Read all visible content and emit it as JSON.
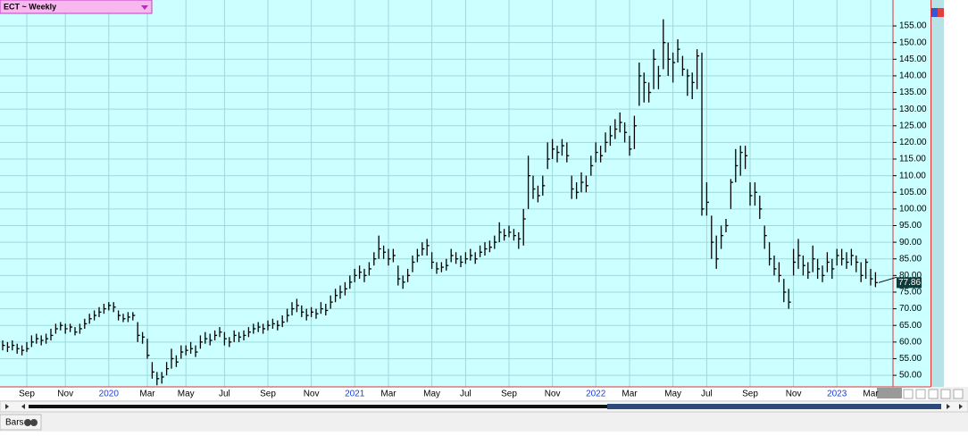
{
  "chart_data": {
    "type": "hlc",
    "title": "ECT ~ Weekly",
    "footer": "Bars",
    "ylim": [
      46.8,
      162.8
    ],
    "yticks": [
      {
        "value": 50,
        "label": "50.00"
      },
      {
        "value": 55,
        "label": "55.00"
      },
      {
        "value": 60,
        "label": "60.00"
      },
      {
        "value": 65,
        "label": "65.00"
      },
      {
        "value": 70,
        "label": "70.00"
      },
      {
        "value": 75,
        "label": "75.00"
      },
      {
        "value": 80,
        "label": "80.00"
      },
      {
        "value": 85,
        "label": "85.00"
      },
      {
        "value": 90,
        "label": "90.00"
      },
      {
        "value": 95,
        "label": "95.00"
      },
      {
        "value": 100,
        "label": "100.00"
      },
      {
        "value": 105,
        "label": "105.00"
      },
      {
        "value": 110,
        "label": "110.00"
      },
      {
        "value": 115,
        "label": "115.00"
      },
      {
        "value": 120,
        "label": "120.00"
      },
      {
        "value": 125,
        "label": "125.00"
      },
      {
        "value": 130,
        "label": "130.00"
      },
      {
        "value": 135,
        "label": "135.00"
      },
      {
        "value": 140,
        "label": "140.00"
      },
      {
        "value": 145,
        "label": "145.00"
      },
      {
        "value": 150,
        "label": "150.00"
      },
      {
        "value": 155,
        "label": "155.00"
      }
    ],
    "grid": true,
    "color": "#000000",
    "categories": [
      null,
      null,
      null,
      null,
      null,
      "Sep",
      null,
      null,
      null,
      null,
      null,
      null,
      null,
      "Nov",
      null,
      null,
      null,
      null,
      null,
      null,
      null,
      null,
      "2020",
      null,
      null,
      null,
      null,
      null,
      null,
      null,
      "Mar",
      null,
      null,
      null,
      null,
      null,
      null,
      null,
      "May",
      null,
      null,
      null,
      null,
      null,
      null,
      null,
      "Jul",
      null,
      null,
      null,
      null,
      null,
      null,
      null,
      null,
      "Sep",
      null,
      null,
      null,
      null,
      null,
      null,
      null,
      null,
      "Nov",
      null,
      null,
      null,
      null,
      null,
      null,
      null,
      null,
      "2021",
      null,
      null,
      null,
      null,
      null,
      null,
      "Mar",
      null,
      null,
      null,
      null,
      null,
      null,
      null,
      null,
      "May",
      null,
      null,
      null,
      null,
      null,
      null,
      "Jul",
      null,
      null,
      null,
      null,
      null,
      null,
      null,
      null,
      "Sep",
      null,
      null,
      null,
      null,
      null,
      null,
      null,
      null,
      "Nov",
      null,
      null,
      null,
      null,
      null,
      null,
      null,
      null,
      "2022",
      null,
      null,
      null,
      null,
      null,
      null,
      "Mar",
      null,
      null,
      null,
      null,
      null,
      null,
      null,
      null,
      "May",
      null,
      null,
      null,
      null,
      null,
      null,
      "Jul",
      null,
      null,
      null,
      null,
      null,
      null,
      null,
      null,
      "Sep",
      null,
      null,
      null,
      null,
      null,
      null,
      null,
      null,
      "Nov",
      null,
      null,
      null,
      null,
      null,
      null,
      null,
      null,
      "2023",
      null,
      null,
      null,
      null,
      null,
      null,
      "Mar",
      null
    ],
    "high": [
      60.5,
      60,
      60.5,
      59.5,
      59,
      60,
      62,
      62.5,
      62,
      62.5,
      64,
      65.5,
      66,
      65.5,
      65.5,
      64.5,
      65.5,
      67,
      68.5,
      69.5,
      70.5,
      71.5,
      72,
      72,
      69.5,
      68.5,
      69,
      69,
      66,
      63,
      61,
      54,
      51,
      51,
      54,
      58,
      56,
      59,
      59,
      60,
      59,
      62,
      63,
      62.5,
      63.5,
      64.5,
      63,
      61.5,
      63.5,
      63,
      63.5,
      64.5,
      65.5,
      66,
      65.5,
      66.5,
      67,
      66.5,
      68,
      70,
      72,
      73,
      71,
      70,
      70.5,
      70,
      72,
      71.5,
      74,
      76,
      77,
      78,
      80,
      82,
      83,
      82,
      84,
      87,
      92,
      89,
      88,
      88,
      83,
      80,
      82,
      86,
      88,
      90,
      91,
      87,
      84,
      84,
      85,
      88,
      87,
      86,
      87,
      88,
      87,
      89,
      90,
      90.5,
      92,
      96,
      94,
      95,
      94,
      93,
      100,
      116,
      110,
      107,
      110,
      120,
      121,
      119,
      121,
      120,
      110,
      108,
      111,
      110,
      116,
      120,
      119,
      123,
      125,
      127,
      129,
      126,
      122,
      128,
      144,
      141,
      138,
      148,
      143,
      157,
      150,
      147,
      151,
      146,
      142,
      141,
      148,
      147,
      108,
      98,
      92,
      95,
      97,
      109,
      118,
      119,
      119,
      108,
      108,
      104,
      95,
      90,
      86,
      84,
      79,
      76,
      88,
      91,
      86,
      84,
      89,
      85,
      83,
      87,
      85,
      88,
      88,
      87,
      88,
      86,
      84,
      85,
      82,
      81
    ],
    "low": [
      57.5,
      57,
      57.5,
      56.5,
      56,
      57,
      58.5,
      59.5,
      59,
      59.5,
      60.5,
      62.5,
      63.5,
      62.5,
      63,
      62,
      62.5,
      64,
      65.5,
      66.5,
      67.5,
      68.5,
      69.5,
      69,
      66.5,
      66,
      66,
      66.5,
      60,
      59.5,
      55,
      49,
      47,
      47.5,
      50,
      52,
      52.5,
      55,
      56,
      56.5,
      55.5,
      58,
      59.5,
      59,
      60.5,
      61.5,
      59,
      58.5,
      60,
      60,
      60.5,
      61.5,
      62.5,
      63,
      62.5,
      63.5,
      64,
      63.5,
      64.5,
      66,
      68,
      69,
      67.5,
      66.5,
      67.5,
      67,
      68.5,
      68,
      70,
      72,
      73,
      74,
      76,
      78,
      79,
      78,
      80,
      83,
      85,
      85,
      83,
      84,
      77,
      76,
      78,
      81,
      84,
      86,
      86,
      82,
      80.5,
      81,
      81.5,
      84,
      83.5,
      82.5,
      83.5,
      84.5,
      83.5,
      85.5,
      86,
      87,
      88,
      90,
      90.5,
      91.5,
      90.5,
      88,
      89,
      100,
      103,
      102,
      104,
      112,
      115,
      114,
      116,
      114,
      103,
      103,
      105,
      105,
      110,
      114,
      114,
      117,
      119,
      121,
      123,
      120,
      116,
      118,
      131,
      132,
      132,
      136,
      136,
      142,
      140,
      138,
      144,
      140,
      134,
      133,
      136,
      98,
      98,
      85,
      82,
      88,
      93,
      100,
      108,
      110,
      112,
      101,
      101,
      97,
      88,
      83,
      80,
      78,
      72,
      70,
      80,
      82,
      80,
      79,
      81,
      79,
      78,
      81,
      79,
      83,
      83,
      82,
      83,
      81,
      78,
      79,
      77,
      76.5
    ],
    "close": [
      59,
      58.5,
      59,
      58,
      57.5,
      58,
      60,
      61,
      60.5,
      61,
      62,
      64,
      65,
      64,
      64.5,
      63,
      64,
      65.5,
      67,
      68,
      69,
      70,
      71,
      70.5,
      68,
      67,
      67.5,
      68,
      62,
      61.5,
      56,
      51,
      49,
      49.5,
      52,
      55,
      54,
      57,
      57.5,
      58,
      57,
      60,
      61,
      60.5,
      62,
      63,
      61,
      60,
      62,
      61.5,
      62,
      63,
      64,
      64.5,
      64,
      65,
      65.5,
      65,
      66,
      68,
      70,
      71,
      69,
      68,
      69,
      68.5,
      70,
      69.5,
      72,
      74,
      75,
      76,
      78,
      80,
      81,
      80,
      82,
      85,
      88,
      87,
      85,
      86,
      79,
      78,
      80,
      84,
      86,
      88,
      89,
      84,
      82,
      82.5,
      83,
      86,
      85,
      84,
      85,
      86,
      85,
      87,
      88,
      88.5,
      90,
      93,
      92,
      93,
      92,
      91,
      97,
      110,
      106,
      104,
      107,
      115,
      118,
      117,
      119,
      116,
      106,
      105,
      108,
      107,
      113,
      117,
      116,
      120,
      122,
      124,
      126,
      123,
      118,
      125,
      140,
      138,
      135,
      145,
      140,
      150,
      145,
      144,
      148,
      142,
      140,
      138,
      146,
      100,
      102,
      90,
      85,
      92,
      95,
      108,
      113,
      117,
      116,
      104,
      105,
      100,
      92,
      85,
      82,
      80,
      75,
      72,
      84,
      86,
      83,
      81,
      85,
      82,
      80,
      84,
      82,
      86,
      85,
      84,
      86,
      84,
      80,
      84,
      79,
      77.86
    ]
  }
}
